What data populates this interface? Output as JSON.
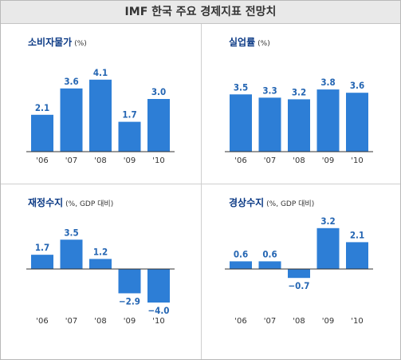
{
  "header": {
    "title": "IMF 한국 주요 경제지표 전망치"
  },
  "chart_data": [
    {
      "type": "bar",
      "title": "소비자물가",
      "unit": "(%)",
      "categories": [
        "'06",
        "'07",
        "'08",
        "'09",
        "'10"
      ],
      "values": [
        2.1,
        3.6,
        4.1,
        1.7,
        3.0
      ],
      "value_labels": [
        "2.1",
        "3.6",
        "4.1",
        "1.7",
        "3.0"
      ],
      "color": "#2d7ed6"
    },
    {
      "type": "bar",
      "title": "실업률",
      "unit": "(%)",
      "categories": [
        "'06",
        "'07",
        "'08",
        "'09",
        "'10"
      ],
      "values": [
        3.5,
        3.3,
        3.2,
        3.8,
        3.6
      ],
      "value_labels": [
        "3.5",
        "3.3",
        "3.2",
        "3.8",
        "3.6"
      ],
      "color": "#2d7ed6"
    },
    {
      "type": "bar",
      "title": "재정수지",
      "unit": "(%, GDP 대비)",
      "categories": [
        "'06",
        "'07",
        "'08",
        "'09",
        "'10"
      ],
      "values": [
        1.7,
        3.5,
        1.2,
        -2.9,
        -4.0
      ],
      "value_labels": [
        "1.7",
        "3.5",
        "1.2",
        "−2.9",
        "−4.0"
      ],
      "color": "#2d7ed6"
    },
    {
      "type": "bar",
      "title": "경상수지",
      "unit": "(%, GDP 대비)",
      "categories": [
        "'06",
        "'07",
        "'08",
        "'09",
        "'10"
      ],
      "values": [
        0.6,
        0.6,
        -0.7,
        3.2,
        2.1
      ],
      "value_labels": [
        "0.6",
        "0.6",
        "−0.7",
        "3.2",
        "2.1"
      ],
      "color": "#2d7ed6"
    }
  ]
}
